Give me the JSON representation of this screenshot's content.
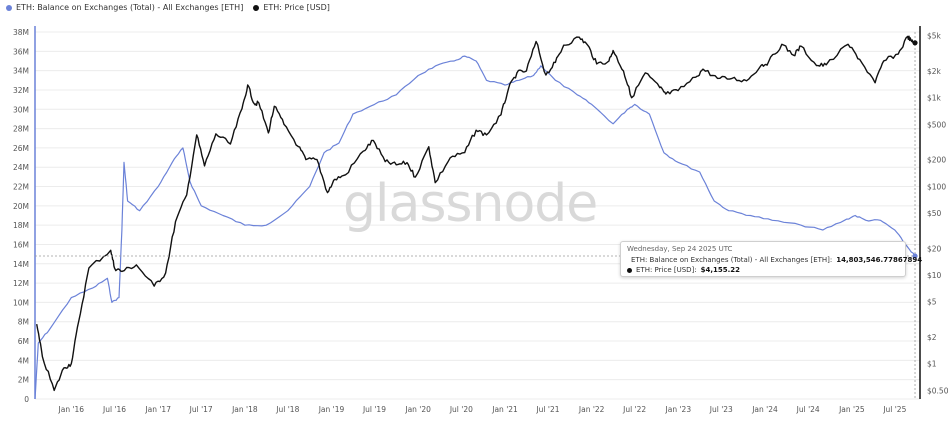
{
  "legend": {
    "balance_label": "ETH: Balance on Exchanges (Total) - All Exchanges [ETH]",
    "price_label": "ETH: Price [USD]"
  },
  "colors": {
    "balance": "#6b82d8",
    "price": "#111111",
    "grid": "#ececec"
  },
  "watermark": "glassnode",
  "tooltip": {
    "date": "Wednesday, Sep 24 2025 UTC",
    "balance_prefix": "ETH: Balance on Exchanges (Total) - All Exchanges [ETH]:",
    "balance_value": "14,803,546.77867894",
    "price_prefix": "ETH: Price [USD]:",
    "price_value": "$4,155.22"
  },
  "chart_data": {
    "type": "line",
    "left_axis": {
      "ylim": [
        0,
        38000000
      ],
      "ticks": [
        0,
        2000000,
        4000000,
        6000000,
        8000000,
        10000000,
        12000000,
        14000000,
        16000000,
        18000000,
        20000000,
        22000000,
        24000000,
        26000000,
        28000000,
        30000000,
        32000000,
        34000000,
        36000000,
        38000000
      ],
      "tick_labels": [
        "0",
        "2M",
        "4M",
        "6M",
        "8M",
        "10M",
        "12M",
        "14M",
        "16M",
        "18M",
        "20M",
        "22M",
        "24M",
        "26M",
        "28M",
        "30M",
        "32M",
        "34M",
        "36M",
        "38M"
      ]
    },
    "right_axis": {
      "scale": "log",
      "ticks": [
        0.5,
        1,
        2,
        5,
        10,
        20,
        50,
        100,
        200,
        500,
        1000,
        2000,
        5000
      ],
      "tick_labels": [
        "$0.50",
        "$1",
        "$2",
        "$5",
        "$10",
        "$20",
        "$50",
        "$100",
        "$200",
        "$500",
        "$1k",
        "$2k",
        "$5k"
      ]
    },
    "x_axis": {
      "range": [
        "2015-08-01",
        "2025-10-15"
      ],
      "ticks": [
        "2016-01-01",
        "2016-07-01",
        "2017-01-01",
        "2017-07-01",
        "2018-01-01",
        "2018-07-01",
        "2019-01-01",
        "2019-07-01",
        "2020-01-01",
        "2020-07-01",
        "2021-01-01",
        "2021-07-01",
        "2022-01-01",
        "2022-07-01",
        "2023-01-01",
        "2023-07-01",
        "2024-01-01",
        "2024-07-01",
        "2025-01-01",
        "2025-07-01"
      ],
      "tick_labels": [
        "Jan '16",
        "Jul '16",
        "Jan '17",
        "Jul '17",
        "Jan '18",
        "Jul '18",
        "Jan '19",
        "Jul '19",
        "Jan '20",
        "Jul '20",
        "Jan '21",
        "Jul '21",
        "Jan '22",
        "Jul '22",
        "Jan '23",
        "Jul '23",
        "Jan '24",
        "Jul '24",
        "Jan '25",
        "Jul '25"
      ]
    },
    "series": [
      {
        "name": "ETH: Balance on Exchanges (Total) - All Exchanges [ETH]",
        "axis": "left",
        "points": [
          [
            "2015-08-01",
            0
          ],
          [
            "2015-08-15",
            5800000
          ],
          [
            "2015-10-01",
            7200000
          ],
          [
            "2016-01-01",
            10500000
          ],
          [
            "2016-04-01",
            11500000
          ],
          [
            "2016-06-01",
            12500000
          ],
          [
            "2016-06-20",
            10000000
          ],
          [
            "2016-07-20",
            10500000
          ],
          [
            "2016-08-01",
            17500000
          ],
          [
            "2016-08-10",
            24500000
          ],
          [
            "2016-08-25",
            20500000
          ],
          [
            "2016-10-15",
            19500000
          ],
          [
            "2017-01-01",
            22000000
          ],
          [
            "2017-03-01",
            24500000
          ],
          [
            "2017-04-15",
            26000000
          ],
          [
            "2017-05-15",
            22500000
          ],
          [
            "2017-07-01",
            20000000
          ],
          [
            "2017-10-01",
            19000000
          ],
          [
            "2018-01-01",
            18000000
          ],
          [
            "2018-04-01",
            18000000
          ],
          [
            "2018-07-01",
            19500000
          ],
          [
            "2018-10-01",
            22000000
          ],
          [
            "2018-12-01",
            25500000
          ],
          [
            "2019-02-01",
            26500000
          ],
          [
            "2019-04-01",
            29500000
          ],
          [
            "2019-07-01",
            30500000
          ],
          [
            "2019-10-01",
            31500000
          ],
          [
            "2020-01-01",
            33500000
          ],
          [
            "2020-03-15",
            34500000
          ],
          [
            "2020-06-01",
            35000000
          ],
          [
            "2020-07-15",
            35500000
          ],
          [
            "2020-09-01",
            35000000
          ],
          [
            "2020-10-15",
            33000000
          ],
          [
            "2021-01-01",
            32500000
          ],
          [
            "2021-03-01",
            33000000
          ],
          [
            "2021-05-01",
            33500000
          ],
          [
            "2021-06-01",
            34500000
          ],
          [
            "2021-08-01",
            33000000
          ],
          [
            "2021-11-01",
            31500000
          ],
          [
            "2022-01-01",
            30500000
          ],
          [
            "2022-04-01",
            28500000
          ],
          [
            "2022-06-01",
            30000000
          ],
          [
            "2022-07-01",
            30500000
          ],
          [
            "2022-09-01",
            29500000
          ],
          [
            "2022-11-01",
            25500000
          ],
          [
            "2023-01-01",
            24500000
          ],
          [
            "2023-04-01",
            23500000
          ],
          [
            "2023-06-01",
            20500000
          ],
          [
            "2023-08-01",
            19500000
          ],
          [
            "2023-11-01",
            19000000
          ],
          [
            "2024-02-01",
            18500000
          ],
          [
            "2024-06-01",
            18000000
          ],
          [
            "2024-09-01",
            17500000
          ],
          [
            "2024-12-01",
            18500000
          ],
          [
            "2025-01-15",
            19000000
          ],
          [
            "2025-03-01",
            18500000
          ],
          [
            "2025-05-01",
            18500000
          ],
          [
            "2025-07-01",
            17500000
          ],
          [
            "2025-08-15",
            16000000
          ],
          [
            "2025-09-24",
            14803547
          ]
        ]
      },
      {
        "name": "ETH: Price [USD]",
        "axis": "right",
        "points": [
          [
            "2015-08-08",
            2.8
          ],
          [
            "2015-09-01",
            1.2
          ],
          [
            "2015-10-21",
            0.5
          ],
          [
            "2015-12-01",
            0.9
          ],
          [
            "2016-01-01",
            1.0
          ],
          [
            "2016-02-01",
            3.0
          ],
          [
            "2016-03-15",
            12
          ],
          [
            "2016-06-15",
            19
          ],
          [
            "2016-07-01",
            12
          ],
          [
            "2016-08-01",
            11
          ],
          [
            "2016-10-01",
            13
          ],
          [
            "2016-12-15",
            7.5
          ],
          [
            "2017-02-01",
            10.5
          ],
          [
            "2017-03-15",
            40
          ],
          [
            "2017-05-01",
            80
          ],
          [
            "2017-06-12",
            380
          ],
          [
            "2017-07-15",
            170
          ],
          [
            "2017-09-01",
            390
          ],
          [
            "2017-11-01",
            300
          ],
          [
            "2017-12-20",
            750
          ],
          [
            "2018-01-13",
            1390
          ],
          [
            "2018-02-10",
            850
          ],
          [
            "2018-03-01",
            870
          ],
          [
            "2018-04-10",
            400
          ],
          [
            "2018-05-05",
            800
          ],
          [
            "2018-06-15",
            500
          ],
          [
            "2018-08-15",
            280
          ],
          [
            "2018-09-15",
            200
          ],
          [
            "2018-11-01",
            200
          ],
          [
            "2018-12-15",
            85
          ],
          [
            "2019-01-15",
            120
          ],
          [
            "2019-03-01",
            135
          ],
          [
            "2019-05-15",
            250
          ],
          [
            "2019-06-26",
            330
          ],
          [
            "2019-08-15",
            190
          ],
          [
            "2019-10-01",
            175
          ],
          [
            "2019-11-15",
            185
          ],
          [
            "2019-12-20",
            127
          ],
          [
            "2020-02-15",
            280
          ],
          [
            "2020-03-13",
            110
          ],
          [
            "2020-05-15",
            210
          ],
          [
            "2020-07-15",
            240
          ],
          [
            "2020-09-01",
            430
          ],
          [
            "2020-10-15",
            380
          ],
          [
            "2020-12-15",
            640
          ],
          [
            "2021-01-15",
            1250
          ],
          [
            "2021-02-20",
            1900
          ],
          [
            "2021-04-01",
            2000
          ],
          [
            "2021-05-12",
            4300
          ],
          [
            "2021-06-22",
            1800
          ],
          [
            "2021-08-01",
            2500
          ],
          [
            "2021-09-05",
            3900
          ],
          [
            "2021-11-10",
            4800
          ],
          [
            "2021-12-15",
            3900
          ],
          [
            "2022-01-22",
            2400
          ],
          [
            "2022-03-15",
            2600
          ],
          [
            "2022-04-01",
            3400
          ],
          [
            "2022-05-15",
            2000
          ],
          [
            "2022-06-18",
            1000
          ],
          [
            "2022-08-15",
            1900
          ],
          [
            "2022-10-15",
            1300
          ],
          [
            "2022-11-09",
            1100
          ],
          [
            "2022-12-31",
            1200
          ],
          [
            "2023-03-15",
            1700
          ],
          [
            "2023-04-15",
            2100
          ],
          [
            "2023-06-15",
            1650
          ],
          [
            "2023-08-15",
            1650
          ],
          [
            "2023-10-15",
            1550
          ],
          [
            "2023-12-15",
            2300
          ],
          [
            "2024-01-15",
            2500
          ],
          [
            "2024-03-12",
            4000
          ],
          [
            "2024-05-01",
            3000
          ],
          [
            "2024-06-01",
            3800
          ],
          [
            "2024-08-05",
            2300
          ],
          [
            "2024-09-15",
            2350
          ],
          [
            "2024-12-16",
            4000
          ],
          [
            "2025-02-03",
            2700
          ],
          [
            "2025-04-09",
            1470
          ],
          [
            "2025-05-15",
            2600
          ],
          [
            "2025-07-15",
            3100
          ],
          [
            "2025-08-24",
            4900
          ],
          [
            "2025-09-10",
            4300
          ],
          [
            "2025-09-24",
            4155
          ]
        ]
      }
    ]
  }
}
